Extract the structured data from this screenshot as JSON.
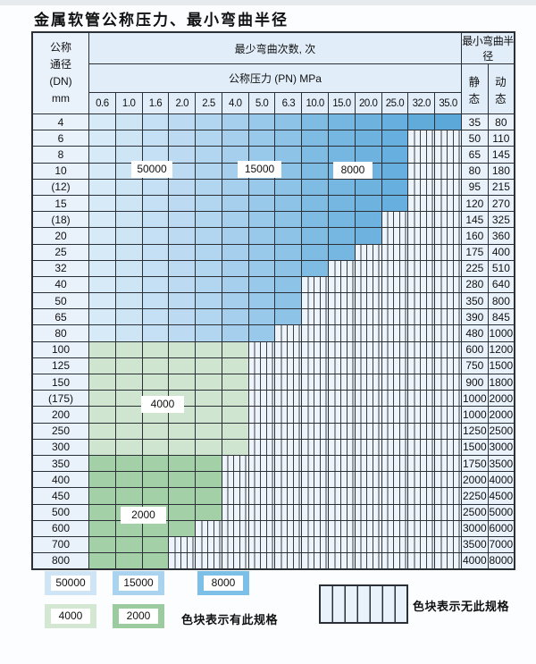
{
  "title": "金属软管公称压力、最小弯曲半径",
  "table": {
    "header": {
      "dn_lines": [
        "公称",
        "通径",
        "(DN)",
        "mm"
      ],
      "bend_cycles": "最少弯曲次数, 次",
      "pressure": "公称压力 (PN) MPa",
      "min_radius": "最小弯曲半径",
      "static": "静 态",
      "dynamic": "动 态",
      "pressures": [
        "0.6",
        "1.0",
        "1.6",
        "2.0",
        "2.5",
        "4.0",
        "5.0",
        "6.3",
        "10.0",
        "15.0",
        "20.0",
        "25.0",
        "32.0",
        "35.0"
      ]
    },
    "rows": [
      {
        "dn": "4",
        "colored": 14,
        "zone": "blue",
        "static": "35",
        "dynamic": "80"
      },
      {
        "dn": "6",
        "colored": 12,
        "zone": "blue",
        "static": "50",
        "dynamic": "110"
      },
      {
        "dn": "8",
        "colored": 12,
        "zone": "blue",
        "static": "65",
        "dynamic": "145"
      },
      {
        "dn": "10",
        "colored": 12,
        "zone": "blue",
        "static": "80",
        "dynamic": "180"
      },
      {
        "dn": "(12)",
        "colored": 12,
        "zone": "blue",
        "static": "95",
        "dynamic": "215"
      },
      {
        "dn": "15",
        "colored": 12,
        "zone": "blue",
        "static": "120",
        "dynamic": "270"
      },
      {
        "dn": "(18)",
        "colored": 11,
        "zone": "blue",
        "static": "145",
        "dynamic": "325"
      },
      {
        "dn": "20",
        "colored": 11,
        "zone": "blue",
        "static": "160",
        "dynamic": "360"
      },
      {
        "dn": "25",
        "colored": 10,
        "zone": "blue",
        "static": "175",
        "dynamic": "400"
      },
      {
        "dn": "32",
        "colored": 9,
        "zone": "blue",
        "static": "225",
        "dynamic": "510"
      },
      {
        "dn": "40",
        "colored": 8,
        "zone": "blue",
        "static": "280",
        "dynamic": "640"
      },
      {
        "dn": "50",
        "colored": 8,
        "zone": "blue",
        "static": "350",
        "dynamic": "800"
      },
      {
        "dn": "65",
        "colored": 8,
        "zone": "blue",
        "static": "390",
        "dynamic": "845"
      },
      {
        "dn": "80",
        "colored": 7,
        "zone": "blue",
        "static": "480",
        "dynamic": "1000"
      },
      {
        "dn": "100",
        "colored": 6,
        "zone": "green4000",
        "static": "600",
        "dynamic": "1200"
      },
      {
        "dn": "125",
        "colored": 6,
        "zone": "green4000",
        "static": "750",
        "dynamic": "1500"
      },
      {
        "dn": "150",
        "colored": 6,
        "zone": "green4000",
        "static": "900",
        "dynamic": "1800"
      },
      {
        "dn": "(175)",
        "colored": 6,
        "zone": "green4000",
        "static": "1000",
        "dynamic": "2000"
      },
      {
        "dn": "200",
        "colored": 6,
        "zone": "green4000",
        "static": "1000",
        "dynamic": "2000"
      },
      {
        "dn": "250",
        "colored": 6,
        "zone": "green4000",
        "static": "1250",
        "dynamic": "2500"
      },
      {
        "dn": "300",
        "colored": 6,
        "zone": "green4000",
        "static": "1500",
        "dynamic": "3000"
      },
      {
        "dn": "350",
        "colored": 5,
        "zone": "green2000",
        "static": "1750",
        "dynamic": "3500"
      },
      {
        "dn": "400",
        "colored": 5,
        "zone": "green2000",
        "static": "2000",
        "dynamic": "4000"
      },
      {
        "dn": "450",
        "colored": 5,
        "zone": "green2000",
        "static": "2250",
        "dynamic": "4500"
      },
      {
        "dn": "500",
        "colored": 5,
        "zone": "green2000",
        "static": "2500",
        "dynamic": "5000"
      },
      {
        "dn": "600",
        "colored": 4,
        "zone": "green2000",
        "static": "3000",
        "dynamic": "6000"
      },
      {
        "dn": "700",
        "colored": 3,
        "zone": "green2000",
        "static": "3500",
        "dynamic": "7000"
      },
      {
        "dn": "800",
        "colored": 3,
        "zone": "green2000",
        "static": "4000",
        "dynamic": "8000"
      }
    ]
  },
  "overlays": {
    "cycles50000": "50000",
    "cycles15000": "15000",
    "cycles8000": "8000",
    "cycles4000": "4000",
    "cycles2000": "2000"
  },
  "legend": {
    "swatches": [
      {
        "value": "50000",
        "color": "#cfe4f5"
      },
      {
        "value": "15000",
        "color": "#a9d3ee"
      },
      {
        "value": "8000",
        "color": "#7cc0e8"
      },
      {
        "value": "4000",
        "color": "#d4e7d3"
      },
      {
        "value": "2000",
        "color": "#9ccb9f"
      }
    ],
    "has_spec_note": "色块表示有此规格",
    "no_spec_note": "色块表示无此规格"
  },
  "colors": {
    "blue_columns": [
      "#d7eaf8",
      "#cee5f6",
      "#c5e0f4",
      "#bcdbf2",
      "#b3d6f0",
      "#a5cfed",
      "#99c9ea",
      "#8dc3e7",
      "#7ebce4",
      "#76b7e2",
      "#6eb3e0",
      "#67afde",
      "#61abdb",
      "#5ca8d9"
    ],
    "green4000": "#d0e5cf",
    "green2000": "#a3d0a6",
    "stripe_bg": "#edf4fb",
    "stripe_line": "#3a4046",
    "border": "#2b3036",
    "header_bg": "#e1edf8",
    "side_bg": "#e9f1fa"
  }
}
